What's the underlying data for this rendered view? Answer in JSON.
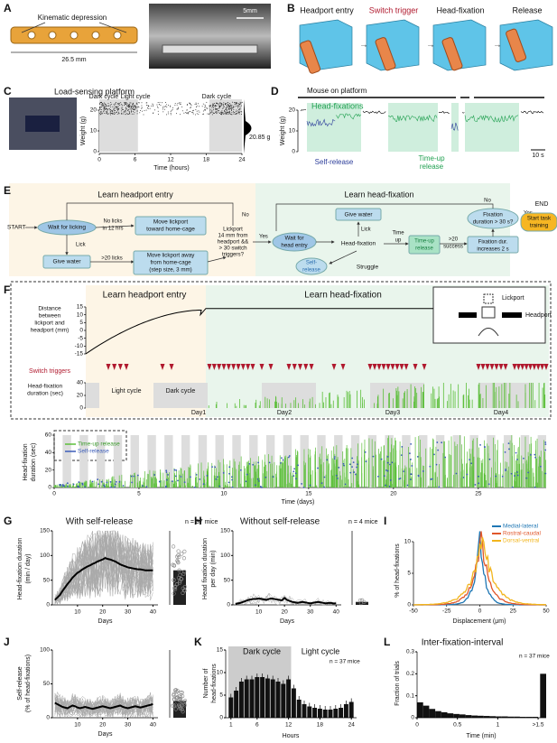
{
  "panels": {
    "A": {
      "label": "A",
      "kinematic": "Kinematic depression",
      "width": "26.5 mm",
      "scale": "5mm"
    },
    "B": {
      "label": "B",
      "steps": [
        "Headport entry",
        "Switch trigger",
        "Head-fixation",
        "Release"
      ]
    },
    "C": {
      "label": "C",
      "title": "Load-sensing platform",
      "cycles": [
        "Dark cycle",
        "Light cycle",
        "Dark cycle"
      ],
      "ylabel": "Weight (g)",
      "yticks": [
        0,
        10,
        20
      ],
      "xticks": [
        0,
        6,
        12,
        18,
        24
      ],
      "xlabel": "Time (hours)",
      "peak": "20.85 g"
    },
    "D": {
      "label": "D",
      "top": "Mouse on platform",
      "fix": "Head-fixations",
      "self": "Self-release",
      "timeup": [
        "Time-up",
        "release"
      ],
      "scale": "10 s",
      "ylabel": "Weight (g)",
      "yticks": [
        0,
        10,
        20
      ]
    },
    "E": {
      "label": "E",
      "left": "Learn headport entry",
      "right": "Learn head-fixation",
      "start": "START",
      "wait_lick": "Wait for licking",
      "no_licks": [
        "No licks",
        "in 12 hrs"
      ],
      "move_toward": [
        "Move lickport",
        "toward home-cage"
      ],
      "lick1": "Lick",
      "give1": "Give water",
      "licks20": ">20 licks",
      "move_away": [
        "Move lickport away",
        "from home-cage",
        "(step size, 3 mm)"
      ],
      "decision1": [
        "Lickport",
        "14 mm from",
        "headport &&",
        "> 30 switch",
        "triggers?"
      ],
      "no1": "No",
      "yes1": "Yes",
      "wait_head": [
        "Wait for",
        "head entry"
      ],
      "give2": "Give water",
      "lick2": "Lick",
      "headfix": "Head-fixation",
      "self": [
        "Self-",
        "release"
      ],
      "struggle": "Struggle",
      "timeup": [
        "Time",
        "up"
      ],
      "timeup_release": [
        "Time-up",
        "release"
      ],
      "success": [
        ">20",
        "success"
      ],
      "increase": [
        "Fixation dur.",
        "increases 2 s"
      ],
      "decision2": [
        "Fixation",
        "duration > 30 s?"
      ],
      "no2": "No",
      "yes2": "Yes",
      "end": "END",
      "training": [
        "Start task",
        "training"
      ]
    },
    "F": {
      "label": "F",
      "left": "Learn headport entry",
      "right": "Learn head-fixation",
      "distance_label": [
        "Distance",
        "between",
        "lickport and",
        "headport (mm)"
      ],
      "distance_ticks": [
        15,
        10,
        5,
        0,
        -5,
        -10,
        -15
      ],
      "switch": "Switch triggers",
      "dur_label": [
        "Head-fixation",
        "duration (sec)"
      ],
      "dur_ticks": [
        0,
        20,
        40
      ],
      "light": "Light cycle",
      "dark": "Dark cycle",
      "days": [
        "Day1",
        "Day2",
        "Day3",
        "Day4"
      ],
      "lickport": "Lickport",
      "headport": "Headport",
      "lower_ylabel": [
        "Head-fixation",
        "duration (sec)"
      ],
      "lower_yticks": [
        0,
        20,
        40,
        60
      ],
      "lower_xticks": [
        0,
        5,
        10,
        15,
        20,
        25
      ],
      "lower_xlabel": "Time (days)",
      "legend": [
        "Time-up release",
        "Self-release"
      ]
    },
    "G": {
      "label": "G",
      "title": "With self-release",
      "n": "n = 37 mice",
      "ylabel": [
        "Head-fixation duration",
        "(min / day)"
      ],
      "yticks": [
        0,
        50,
        100,
        150
      ],
      "xticks": [
        10,
        20,
        30,
        40
      ],
      "xlabel": "Days",
      "xlim": [
        0,
        42
      ],
      "ylim": [
        0,
        150
      ],
      "mean": [
        10,
        15,
        20,
        28,
        35,
        42,
        48,
        55,
        60,
        65,
        68,
        72,
        75,
        78,
        80,
        83,
        85,
        88,
        90,
        92,
        95,
        93,
        92,
        90,
        88,
        85,
        82,
        80,
        78,
        76,
        75,
        74,
        73,
        72,
        72,
        71,
        70,
        70,
        70,
        70
      ],
      "summary_mean": 70
    },
    "H": {
      "label": "H",
      "title": "Without self-release",
      "n": "n = 4 mice",
      "ylabel": [
        "Head fixation duration",
        "per day (min)"
      ],
      "yticks": [
        0,
        50,
        100,
        150
      ],
      "xticks": [
        10,
        20,
        30,
        40
      ],
      "xlabel": "Days",
      "xlim": [
        0,
        42
      ],
      "ylim": [
        0,
        150
      ],
      "mean": [
        2,
        3,
        4,
        6,
        8,
        10,
        11,
        12,
        12,
        13,
        12,
        11,
        10,
        12,
        13,
        12,
        11,
        10,
        9,
        14,
        10,
        8,
        6,
        5,
        4,
        5,
        6,
        5,
        4,
        3,
        4,
        5,
        6,
        5,
        4,
        3,
        4,
        4,
        3,
        3
      ],
      "summary_mean": 6
    },
    "I": {
      "label": "I",
      "legend": [
        "Medial-lateral",
        "Rostral-caudal",
        "Dorsal-ventral"
      ],
      "colors": [
        "#1f77b4",
        "#e0562a",
        "#f2b51d"
      ],
      "ylabel": "% of head-fixations",
      "yticks": [
        0,
        5,
        10
      ],
      "xticks": [
        -50,
        -25,
        0,
        25,
        50
      ],
      "xlabel": "Displacement (μm)"
    },
    "J": {
      "label": "J",
      "ylabel": [
        "Self-release",
        "(% of head-fixations)"
      ],
      "yticks": [
        0,
        50,
        100
      ],
      "xticks": [
        10,
        20,
        30,
        40
      ],
      "xlabel": "Days",
      "xlim": [
        0,
        42
      ],
      "ylim": [
        0,
        100
      ],
      "mean": [
        22,
        20,
        18,
        16,
        15,
        14,
        16,
        18,
        17,
        15,
        14,
        15,
        16,
        15,
        14,
        13,
        14,
        15,
        16,
        17,
        16,
        15,
        14,
        15,
        16,
        17,
        18,
        16,
        15,
        14,
        15,
        16,
        17,
        16,
        15,
        16,
        17,
        18,
        19,
        20
      ],
      "summary_mean": 25
    },
    "K": {
      "label": "K",
      "dark": "Dark cycle",
      "light": "Light cycle",
      "n": "n = 37 mice",
      "ylabel": [
        "Number of",
        "head-fixations"
      ],
      "yticks": [
        0,
        5,
        10,
        15
      ],
      "xticks": [
        1,
        6,
        12,
        18,
        24
      ],
      "xlabel": "Hours",
      "xlim": [
        0,
        25
      ],
      "ylim": [
        0,
        15
      ],
      "values": [
        4.5,
        6,
        8,
        8.5,
        8.5,
        9,
        9,
        8.7,
        8.5,
        8,
        7.5,
        8.5,
        6.5,
        4,
        3,
        2.5,
        2.2,
        2,
        1.8,
        1.8,
        2,
        2.2,
        3,
        3.5
      ]
    },
    "L": {
      "label": "L",
      "title": "Inter-fixation-interval",
      "n": "n = 37 mice",
      "ylabel": "Fraction of trials",
      "yticks": [
        0,
        0.1,
        0.2,
        0.3
      ],
      "xticks": [
        0,
        0.5,
        1,
        {
          "value": 1.5,
          "label": ">1.5"
        }
      ],
      "xlabel": "Time (min)",
      "xlim": [
        0,
        1.6
      ],
      "ylim": [
        0,
        0.3
      ],
      "bin_width": 0.075,
      "values": [
        0.07,
        0.055,
        0.04,
        0.03,
        0.025,
        0.02,
        0.017,
        0.015,
        0.012,
        0.01,
        0.009,
        0.008,
        0.007,
        0.006,
        0.006,
        0.005,
        0.005,
        0.004,
        0.004,
        0.004
      ],
      "overflow": 0.2
    }
  }
}
